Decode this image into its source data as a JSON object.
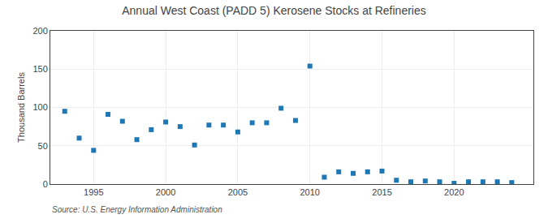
{
  "chart_data": {
    "type": "scatter",
    "title": "Annual West Coast (PADD 5) Kerosene Stocks at Refineries",
    "ylabel": "Thousand Barrels",
    "annotations": [
      "Source: U.S. Energy Information Administration"
    ],
    "x": [
      1993,
      1994,
      1995,
      1996,
      1997,
      1998,
      1999,
      2000,
      2001,
      2002,
      2003,
      2004,
      2005,
      2006,
      2007,
      2008,
      2009,
      2010,
      2011,
      2012,
      2013,
      2014,
      2015,
      2016,
      2017,
      2018,
      2019,
      2020,
      2021,
      2022,
      2023,
      2024
    ],
    "values": [
      95,
      60,
      44,
      91,
      82,
      58,
      71,
      81,
      75,
      51,
      77,
      77,
      68,
      80,
      80,
      99,
      83,
      154,
      9,
      16,
      14,
      16,
      17,
      5,
      3,
      4,
      3,
      1,
      3,
      3,
      3,
      2
    ],
    "marker": "square",
    "xlim": [
      1992.0,
      2025.5
    ],
    "xticks": [
      1995,
      2000,
      2005,
      2010,
      2015,
      2020
    ],
    "ylim": [
      0,
      200
    ],
    "yticks": [
      0,
      50,
      100,
      150,
      200
    ],
    "grid": true
  }
}
